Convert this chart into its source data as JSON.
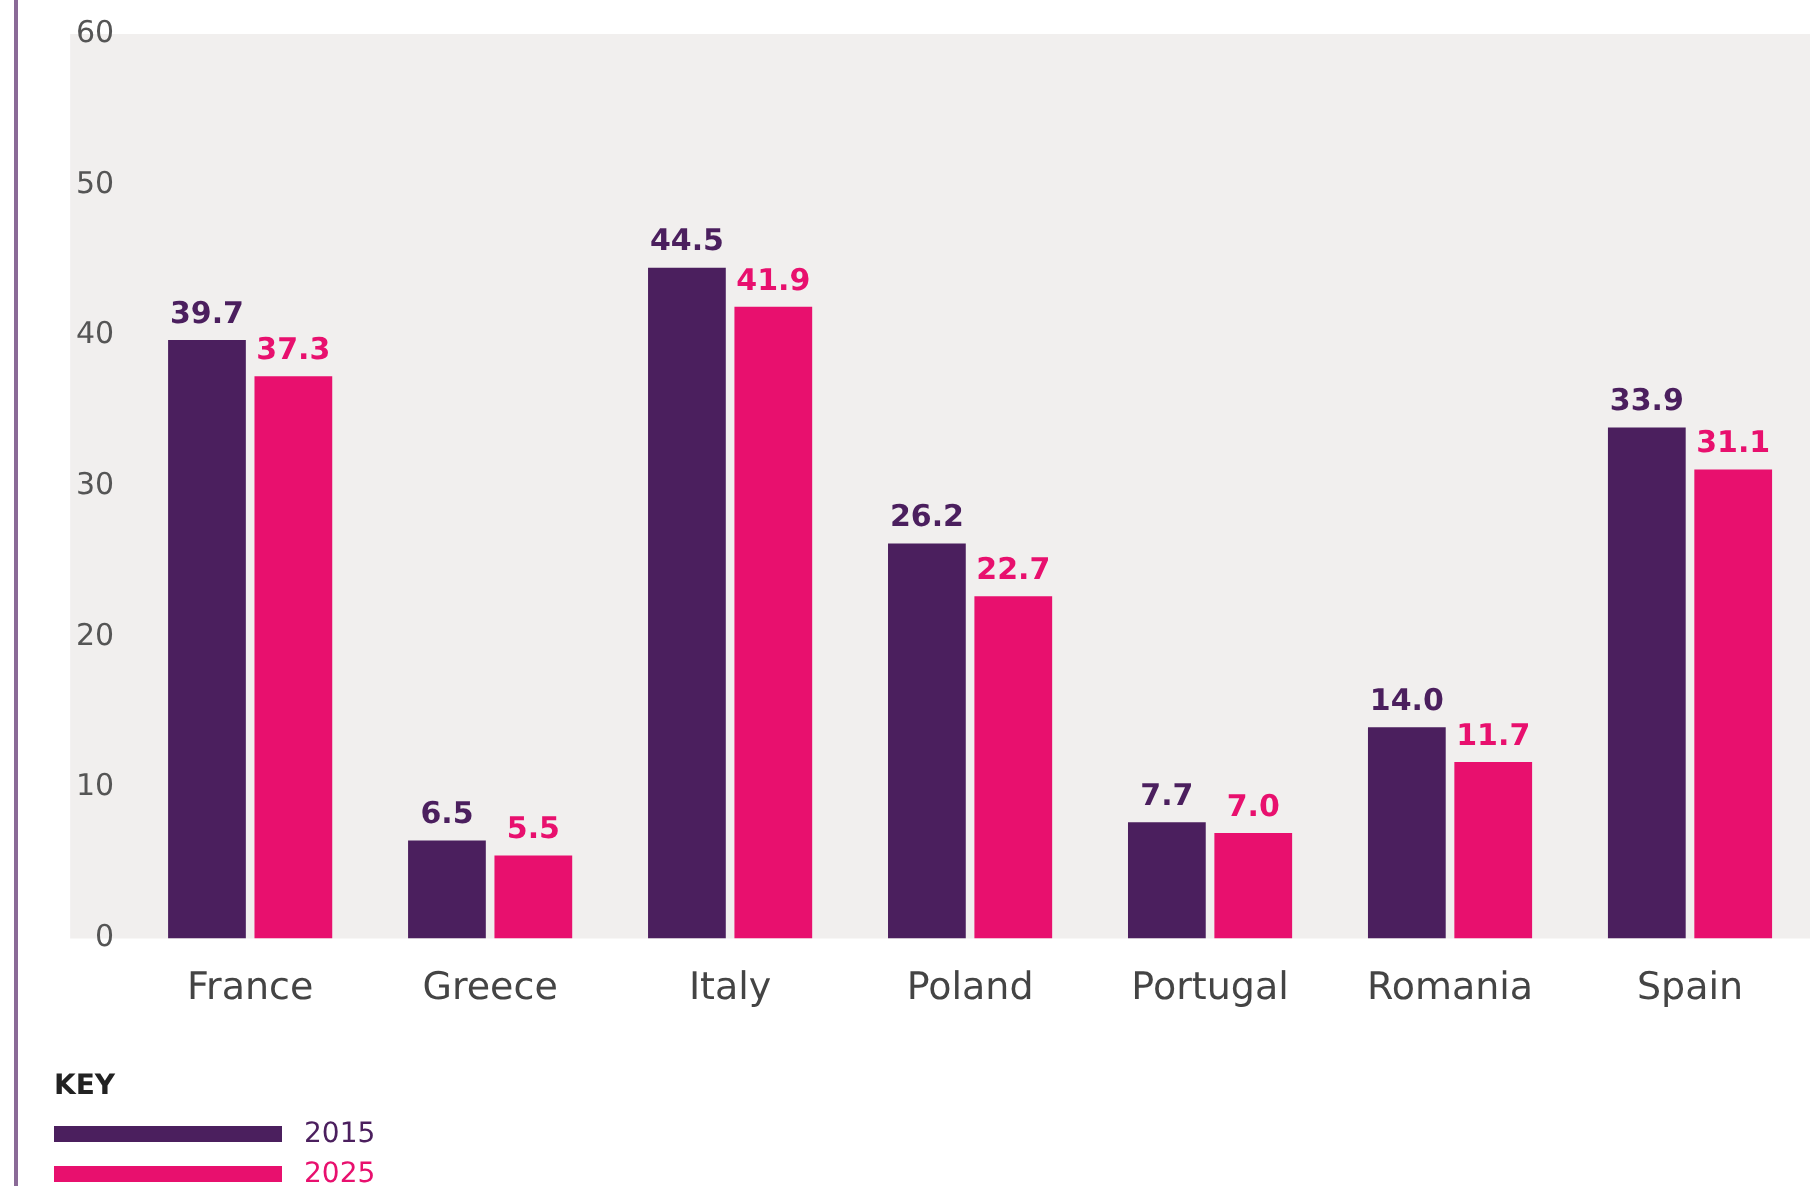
{
  "chart_data": {
    "type": "bar",
    "categories": [
      "France",
      "Greece",
      "Italy",
      "Poland",
      "Portugal",
      "Romania",
      "Spain"
    ],
    "series": [
      {
        "name": "2015",
        "color": "#4b1f5e",
        "values": [
          39.7,
          6.5,
          44.5,
          26.2,
          7.7,
          14.0,
          33.9
        ],
        "value_labels": [
          "39.7",
          "6.5",
          "44.5",
          "26.2",
          "7.7",
          "14.0",
          "33.9"
        ]
      },
      {
        "name": "2025",
        "color": "#e8106e",
        "values": [
          37.3,
          5.5,
          41.9,
          22.7,
          7.0,
          11.7,
          31.1
        ],
        "value_labels": [
          "37.3",
          "5.5",
          "41.9",
          "22.7",
          "7.0",
          "11.7",
          "31.1"
        ]
      }
    ],
    "ylim": [
      0,
      60
    ],
    "yticks": [
      0,
      10,
      20,
      30,
      40,
      50,
      60
    ],
    "grid": false,
    "legend": "bottom left",
    "legend_title": "KEY"
  }
}
